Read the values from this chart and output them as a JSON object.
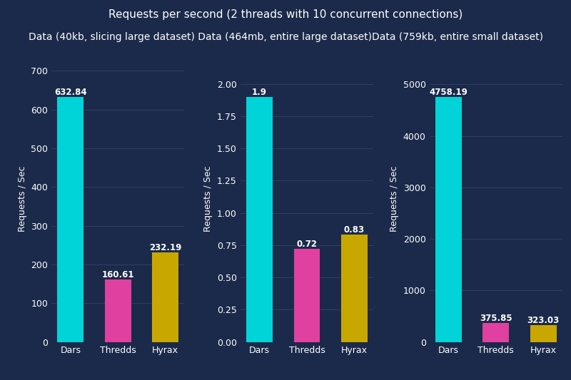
{
  "title": "Requests per second (2 threads with 10 concurrent connections)",
  "subtitles_line": "Data (40kb, slicing large dataset) Data (464mb, entire large dataset)Data (759kb, entire small dataset)",
  "groups": [
    "Dars",
    "Thredds",
    "Hyrax"
  ],
  "values1": [
    632.84,
    160.61,
    232.19
  ],
  "values2": [
    1.9,
    0.72,
    0.83
  ],
  "values3": [
    4758.19,
    375.85,
    323.03
  ],
  "bar_colors": [
    "#00D4D8",
    "#E040A0",
    "#C8A800"
  ],
  "bg_color": "#1B2A4A",
  "text_color": "#FFFFFF",
  "ylabel": "Requests / Sec",
  "title_fontsize": 11,
  "subtitle_fontsize": 10,
  "label_fontsize": 9,
  "tick_fontsize": 9,
  "bar_value_fontsize": 8.5,
  "grid_color": "#3A4A6A"
}
